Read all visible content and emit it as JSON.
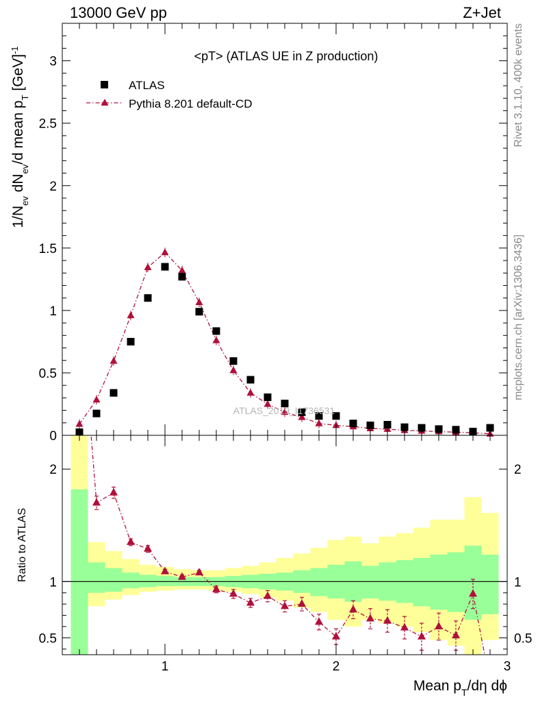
{
  "header": {
    "left": "13000 GeV pp",
    "right": "Z+Jet"
  },
  "side_labels": {
    "top": "Rivet 3.1.10,  400k events",
    "bottom": "mcplots.cern.ch [arXiv:1306.3436]"
  },
  "plot_title": "<pT> (ATLAS UE in Z production)",
  "watermark": "ATLAS_2019_I1736531",
  "legend": {
    "data_label": "ATLAS",
    "mc_label": "Pythia 8.201 default-CD"
  },
  "axes": {
    "ylabel_main": "1/N_ev dN_ev/d mean p_T [GeV]^-1",
    "ylabel_ratio": "Ratio to ATLAS",
    "xlabel": "Mean p_T/dη dϕ"
  },
  "colors": {
    "data": "#000000",
    "mc": "#b0103a",
    "band_inner": "#99ff99",
    "band_outer": "#ffff99"
  },
  "chart_data": [
    {
      "type": "scatter",
      "xlim": [
        0.4,
        3.0
      ],
      "ylim": [
        0,
        3.3
      ],
      "x_ticks": [
        1,
        2,
        3
      ],
      "y_ticks": [
        0,
        0.5,
        1,
        1.5,
        2,
        2.5,
        3
      ],
      "y_tick_labels": [
        "0",
        "0.5",
        "1",
        "1.5",
        "2",
        "2.5",
        "3"
      ],
      "x": [
        0.5,
        0.6,
        0.7,
        0.8,
        0.9,
        1.0,
        1.1,
        1.2,
        1.3,
        1.4,
        1.5,
        1.6,
        1.7,
        1.8,
        1.9,
        2.0,
        2.1,
        2.2,
        2.3,
        2.4,
        2.5,
        2.6,
        2.7,
        2.8,
        2.9
      ],
      "series": [
        {
          "name": "ATLAS",
          "values": [
            0.025,
            0.175,
            0.34,
            0.75,
            1.1,
            1.35,
            1.27,
            0.99,
            0.835,
            0.595,
            0.445,
            0.305,
            0.255,
            0.185,
            0.155,
            0.155,
            0.095,
            0.08,
            0.085,
            0.065,
            0.06,
            0.05,
            0.045,
            0.03,
            0.06
          ]
        },
        {
          "name": "Pythia 8.201 default-CD",
          "values": [
            0.09,
            0.285,
            0.595,
            0.96,
            1.345,
            1.465,
            1.32,
            1.065,
            0.76,
            0.52,
            0.34,
            0.25,
            0.185,
            0.145,
            0.095,
            0.08,
            0.07,
            0.055,
            0.05,
            0.04,
            0.035,
            0.03,
            0.025,
            0.02,
            0.012
          ]
        }
      ]
    },
    {
      "type": "scatter",
      "xlim": [
        0.4,
        3.0
      ],
      "ylim": [
        0.35,
        2.3
      ],
      "x_ticks": [
        1,
        2,
        3
      ],
      "x_tick_labels": [
        "1",
        "2",
        "3"
      ],
      "y_ticks": [
        0.5,
        1,
        2
      ],
      "y_tick_labels": [
        "0.5",
        "1",
        "2"
      ],
      "x": [
        0.6,
        0.7,
        0.8,
        0.9,
        1.0,
        1.1,
        1.2,
        1.3,
        1.4,
        1.5,
        1.6,
        1.7,
        1.8,
        1.9,
        2.0,
        2.1,
        2.2,
        2.3,
        2.4,
        2.5,
        2.6,
        2.7,
        2.8
      ],
      "series": [
        {
          "name": "Pythia 8.201 default-CD",
          "values": [
            1.7,
            1.79,
            1.35,
            1.29,
            1.09,
            1.04,
            1.08,
            0.93,
            0.89,
            0.81,
            0.87,
            0.78,
            0.8,
            0.64,
            0.51,
            0.75,
            0.67,
            0.65,
            0.59,
            0.51,
            0.6,
            0.52,
            0.89
          ],
          "errors": [
            0.06,
            0.05,
            0.03,
            0.03,
            0.02,
            0.02,
            0.02,
            0.03,
            0.04,
            0.04,
            0.05,
            0.05,
            0.06,
            0.07,
            0.07,
            0.08,
            0.09,
            0.1,
            0.1,
            0.12,
            0.12,
            0.13,
            0.13
          ]
        }
      ],
      "band_edges": [
        0.45,
        0.55,
        0.65,
        0.75,
        0.85,
        0.95,
        1.05,
        1.15,
        1.25,
        1.35,
        1.45,
        1.55,
        1.65,
        1.75,
        1.85,
        1.95,
        2.05,
        2.15,
        2.25,
        2.35,
        2.45,
        2.55,
        2.65,
        2.75,
        2.85,
        2.95
      ],
      "band_inner": {
        "upper": [
          1.82,
          1.17,
          1.12,
          1.08,
          1.06,
          1.05,
          1.04,
          1.04,
          1.04,
          1.05,
          1.06,
          1.07,
          1.08,
          1.1,
          1.12,
          1.15,
          1.18,
          1.14,
          1.17,
          1.19,
          1.21,
          1.24,
          1.26,
          1.32,
          1.24
        ],
        "lower": [
          0.35,
          0.9,
          0.91,
          0.94,
          0.95,
          0.96,
          0.96,
          0.96,
          0.96,
          0.95,
          0.94,
          0.93,
          0.92,
          0.9,
          0.87,
          0.85,
          0.82,
          0.85,
          0.83,
          0.81,
          0.78,
          0.75,
          0.73,
          0.66,
          0.71
        ]
      },
      "band_outer": {
        "upper": [
          2.3,
          1.35,
          1.27,
          1.2,
          1.15,
          1.13,
          1.11,
          1.1,
          1.1,
          1.12,
          1.14,
          1.17,
          1.21,
          1.25,
          1.3,
          1.37,
          1.4,
          1.34,
          1.4,
          1.43,
          1.48,
          1.55,
          1.55,
          1.75,
          1.61
        ],
        "lower": [
          0.35,
          0.78,
          0.84,
          0.88,
          0.91,
          0.92,
          0.93,
          0.93,
          0.92,
          0.91,
          0.89,
          0.86,
          0.83,
          0.77,
          0.73,
          0.66,
          0.6,
          0.66,
          0.63,
          0.6,
          0.55,
          0.48,
          0.43,
          0.35,
          0.48
        ]
      }
    }
  ]
}
